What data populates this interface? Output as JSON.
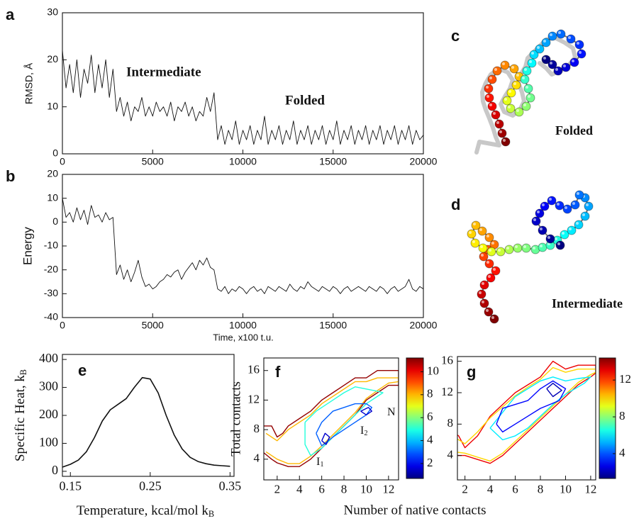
{
  "chart_data": [
    {
      "panel": "a",
      "type": "line",
      "ylabel": "RMSD, Å",
      "annotations": [
        "Intermediate",
        "Folded"
      ],
      "x": [
        0,
        200,
        400,
        600,
        800,
        1000,
        1200,
        1400,
        1600,
        1800,
        2000,
        2200,
        2400,
        2600,
        2800,
        3000,
        3200,
        3400,
        3600,
        3800,
        4000,
        4200,
        4400,
        4600,
        4800,
        5000,
        5200,
        5400,
        5600,
        5800,
        6000,
        6200,
        6400,
        6600,
        6800,
        7000,
        7200,
        7400,
        7600,
        7800,
        8000,
        8200,
        8400,
        8600,
        8800,
        9000,
        9200,
        9400,
        9600,
        9800,
        10000,
        10200,
        10400,
        10600,
        10800,
        11000,
        11200,
        11400,
        11600,
        11800,
        12000,
        12200,
        12400,
        12600,
        12800,
        13000,
        13200,
        13400,
        13600,
        13800,
        14000,
        14200,
        14400,
        14600,
        14800,
        15000,
        15200,
        15400,
        15600,
        15800,
        16000,
        16200,
        16400,
        16600,
        16800,
        17000,
        17200,
        17400,
        17600,
        17800,
        18000,
        18200,
        18400,
        18600,
        18800,
        19000,
        19200,
        19400,
        19600,
        19800,
        20000
      ],
      "series": [
        {
          "color": "#111111",
          "values": [
            22,
            14,
            19,
            13,
            20,
            12,
            18,
            15,
            21,
            13,
            19,
            14,
            20,
            12,
            18,
            9,
            12,
            8,
            11,
            7,
            10,
            9,
            12,
            8,
            10,
            8,
            11,
            9,
            10,
            8,
            11,
            7,
            10,
            9,
            11,
            8,
            10,
            7,
            9,
            8,
            12,
            9,
            13,
            3,
            6,
            2,
            5,
            3,
            7,
            2,
            5,
            3,
            6,
            2,
            5,
            3,
            8,
            2,
            5,
            3,
            6,
            2,
            5,
            3,
            7,
            2,
            5,
            3,
            6,
            2,
            5,
            3,
            6,
            2,
            5,
            3,
            7,
            2,
            5,
            3,
            6,
            2,
            5,
            3,
            6,
            2,
            5,
            3,
            6,
            2,
            5,
            3,
            6,
            2,
            5,
            3,
            6,
            2,
            5,
            3,
            4
          ]
        }
      ],
      "xlim": [
        0,
        20000
      ],
      "ylim": [
        0,
        30
      ],
      "xticks": [
        0,
        5000,
        10000,
        15000,
        20000
      ],
      "yticks": [
        0,
        10,
        20,
        30
      ]
    },
    {
      "panel": "b",
      "type": "line",
      "xlabel": "Time, x100 t.u.",
      "ylabel": "Energy",
      "x": [
        0,
        200,
        400,
        600,
        800,
        1000,
        1200,
        1400,
        1600,
        1800,
        2000,
        2200,
        2400,
        2600,
        2800,
        3000,
        3200,
        3400,
        3600,
        3800,
        4000,
        4200,
        4400,
        4600,
        4800,
        5000,
        5200,
        5400,
        5600,
        5800,
        6000,
        6200,
        6400,
        6600,
        6800,
        7000,
        7200,
        7400,
        7600,
        7800,
        8000,
        8200,
        8400,
        8600,
        8800,
        9000,
        9200,
        9400,
        9600,
        9800,
        10000,
        10200,
        10400,
        10600,
        10800,
        11000,
        11200,
        11400,
        11600,
        11800,
        12000,
        12200,
        12400,
        12600,
        12800,
        13000,
        13200,
        13400,
        13600,
        13800,
        14000,
        14200,
        14400,
        14600,
        14800,
        15000,
        15200,
        15400,
        15600,
        15800,
        16000,
        16200,
        16400,
        16600,
        16800,
        17000,
        17200,
        17400,
        17600,
        17800,
        18000,
        18200,
        18400,
        18600,
        18800,
        19000,
        19200,
        19400,
        19600,
        19800,
        20000
      ],
      "series": [
        {
          "color": "#111111",
          "values": [
            10,
            2,
            4,
            0,
            6,
            1,
            5,
            -1,
            7,
            2,
            3,
            0,
            4,
            1,
            2,
            -22,
            -18,
            -24,
            -20,
            -25,
            -21,
            -16,
            -23,
            -27,
            -26,
            -28,
            -27,
            -25,
            -24,
            -22,
            -23,
            -21,
            -20,
            -24,
            -21,
            -19,
            -17,
            -20,
            -16,
            -18,
            -15,
            -19,
            -20,
            -28,
            -29,
            -27,
            -30,
            -28,
            -29,
            -27,
            -28,
            -30,
            -28,
            -27,
            -29,
            -28,
            -30,
            -27,
            -28,
            -29,
            -27,
            -28,
            -29,
            -26,
            -28,
            -29,
            -27,
            -28,
            -25,
            -27,
            -28,
            -29,
            -27,
            -28,
            -29,
            -27,
            -28,
            -30,
            -28,
            -27,
            -29,
            -28,
            -27,
            -28,
            -29,
            -27,
            -28,
            -29,
            -27,
            -28,
            -30,
            -28,
            -27,
            -29,
            -28,
            -27,
            -24,
            -28,
            -29,
            -27,
            -28
          ]
        }
      ],
      "xlim": [
        0,
        20000
      ],
      "ylim": [
        -40,
        20
      ],
      "xticks": [
        0,
        5000,
        10000,
        15000,
        20000
      ],
      "yticks": [
        -40,
        -30,
        -20,
        -10,
        0,
        10,
        20
      ]
    },
    {
      "panel": "e",
      "type": "line",
      "xlabel": {
        "text": "Temperature, kcal/mol k",
        "sub": "B"
      },
      "ylabel": {
        "text": "Specific Heat, k",
        "sub": "B"
      },
      "x": [
        0.14,
        0.15,
        0.16,
        0.17,
        0.18,
        0.19,
        0.2,
        0.21,
        0.22,
        0.23,
        0.24,
        0.25,
        0.26,
        0.27,
        0.28,
        0.29,
        0.3,
        0.31,
        0.32,
        0.33,
        0.34,
        0.35
      ],
      "series": [
        {
          "color": "#111111",
          "values": [
            15,
            25,
            40,
            70,
            120,
            180,
            220,
            240,
            260,
            300,
            335,
            330,
            280,
            200,
            130,
            80,
            50,
            35,
            27,
            22,
            20,
            18
          ]
        }
      ],
      "xlim": [
        0.14,
        0.355
      ],
      "ylim": [
        -18,
        418
      ],
      "xticks": [
        0.15,
        0.25,
        0.35
      ],
      "yticks": [
        0,
        100,
        200,
        300,
        400
      ]
    },
    {
      "panel": "f",
      "type": "contour",
      "xlabel": "Number of native contacts",
      "ylabel": "Total contacts",
      "annotations": [
        {
          "text": "I",
          "sub": "1"
        },
        {
          "text": "I",
          "sub": "2"
        },
        {
          "text": "N"
        }
      ],
      "contours": [
        {
          "level": 11,
          "x": [
            0.7,
            1.5,
            2,
            2.5,
            3,
            4,
            5,
            6,
            7,
            8,
            9,
            10,
            11,
            12,
            12.9,
            12.9,
            12,
            11,
            10,
            9,
            8,
            7,
            6,
            5,
            4,
            3,
            2,
            1.5,
            0.7
          ],
          "y": [
            8.5,
            8.5,
            7,
            7.5,
            8.5,
            9.5,
            10.5,
            12,
            13,
            14,
            15,
            15,
            16,
            16,
            16,
            14,
            14,
            13,
            12,
            10,
            8.5,
            7,
            5.5,
            4,
            3,
            3,
            3.5,
            4,
            5
          ]
        },
        {
          "level": 8,
          "x": [
            1,
            2,
            3,
            4,
            5,
            6,
            7,
            8,
            9,
            10,
            11,
            12.9,
            12.9,
            12,
            11,
            10,
            9,
            8,
            7,
            6,
            5,
            4,
            3,
            2,
            1
          ],
          "y": [
            7.5,
            6.5,
            8,
            9,
            10,
            11.5,
            12.5,
            13.5,
            14.5,
            14.5,
            15,
            15,
            14.5,
            14.3,
            13.3,
            12.2,
            10.3,
            8.8,
            7.3,
            5.8,
            4.4,
            3.4,
            3.4,
            4,
            5
          ]
        },
        {
          "level": 5,
          "x": [
            4.5,
            5.5,
            7,
            8,
            9,
            10,
            11,
            11.5,
            11,
            10,
            9,
            8,
            7,
            6,
            5,
            4.5,
            4.5
          ],
          "y": [
            9,
            10.5,
            12,
            13,
            13.8,
            13.5,
            13.2,
            13,
            12.5,
            11.5,
            10,
            8.5,
            7,
            5.5,
            4.5,
            6,
            9
          ]
        },
        {
          "level": 3,
          "x": [
            5.5,
            6,
            7,
            8,
            9,
            10,
            10.5,
            10,
            9,
            8,
            7,
            6,
            5.5
          ],
          "y": [
            7.5,
            9,
            10.5,
            11,
            11.5,
            11.5,
            11,
            10,
            9,
            8,
            7,
            5.8,
            7.5
          ]
        },
        {
          "level": 1.5,
          "x": [
            6,
            6.3,
            6.7,
            6.4,
            6
          ],
          "y": [
            6.5,
            7.5,
            7,
            6,
            6.5
          ]
        },
        {
          "level": 1.5,
          "x": [
            9.5,
            10.2,
            10.5,
            10,
            9.5
          ],
          "y": [
            10.5,
            11,
            10.5,
            10,
            10.5
          ]
        }
      ],
      "xlim": [
        0.8,
        12.9
      ],
      "ylim": [
        1.2,
        17.7
      ],
      "xticks": [
        2,
        4,
        6,
        8,
        10,
        12
      ],
      "yticks": [
        4,
        8,
        12,
        16
      ],
      "clim": [
        0.7,
        11.2
      ],
      "cticks": [
        2,
        4,
        6,
        8,
        10
      ]
    },
    {
      "panel": "g",
      "type": "contour",
      "contours": [
        {
          "level": 13,
          "x": [
            0.6,
            1.5,
            2,
            3,
            4,
            5,
            6,
            7,
            8,
            9,
            10,
            11,
            12.4,
            12.4,
            12,
            11,
            10,
            9,
            8,
            7,
            6,
            5,
            4,
            3,
            2,
            1,
            0.6
          ],
          "y": [
            7.5,
            6.5,
            5,
            6.5,
            9,
            10.5,
            12,
            13,
            14,
            16,
            15,
            15.5,
            15.5,
            14.5,
            14,
            13,
            11.5,
            10,
            8.5,
            7,
            5.5,
            4,
            3,
            3.5,
            4,
            4,
            4.5
          ]
        },
        {
          "level": 10,
          "x": [
            1,
            2,
            3,
            4,
            5,
            6,
            7,
            8,
            9,
            10,
            11,
            12.4,
            12.4,
            12,
            11,
            10,
            9,
            8,
            7,
            6,
            5,
            4,
            3,
            2,
            1
          ],
          "y": [
            6.5,
            5.5,
            7,
            8.8,
            10.2,
            11.6,
            12.7,
            13.7,
            15.2,
            14.6,
            15,
            15,
            14.6,
            14.3,
            13.3,
            11.8,
            10.3,
            8.8,
            7.3,
            5.8,
            4.3,
            3.3,
            3.8,
            4.3,
            4.5
          ]
        },
        {
          "level": 6,
          "x": [
            4,
            5,
            6,
            7,
            8,
            9,
            10,
            11,
            12,
            11.5,
            10,
            9,
            8,
            7,
            6,
            5,
            4
          ],
          "y": [
            7.5,
            9.5,
            11.5,
            12.5,
            13.5,
            14,
            13.5,
            13.8,
            14,
            13.2,
            11.8,
            10.5,
            9,
            7.5,
            6.5,
            6,
            7.5
          ]
        },
        {
          "level": 3,
          "x": [
            4.5,
            5,
            6,
            7,
            8,
            9,
            10,
            9.5,
            8,
            7,
            6,
            5,
            4.5
          ],
          "y": [
            8,
            10,
            10.5,
            11,
            12.5,
            13.5,
            12.5,
            11,
            10,
            9,
            8,
            7,
            8
          ]
        },
        {
          "level": 2,
          "x": [
            8.5,
            9,
            9.7,
            9,
            8.5
          ],
          "y": [
            12.5,
            13.2,
            12.3,
            11.5,
            12.5
          ]
        }
      ],
      "xlim": [
        1.4,
        12.4
      ],
      "ylim": [
        0.9,
        16.6
      ],
      "xticks": [
        2,
        4,
        6,
        8,
        10,
        12
      ],
      "yticks": [
        4,
        8,
        12,
        16
      ],
      "clim": [
        1.3,
        14.4
      ],
      "cticks": [
        4,
        8,
        12
      ]
    }
  ],
  "structures": [
    {
      "panel": "c",
      "label": "Folded"
    },
    {
      "panel": "d",
      "label": "Intermediate"
    }
  ]
}
